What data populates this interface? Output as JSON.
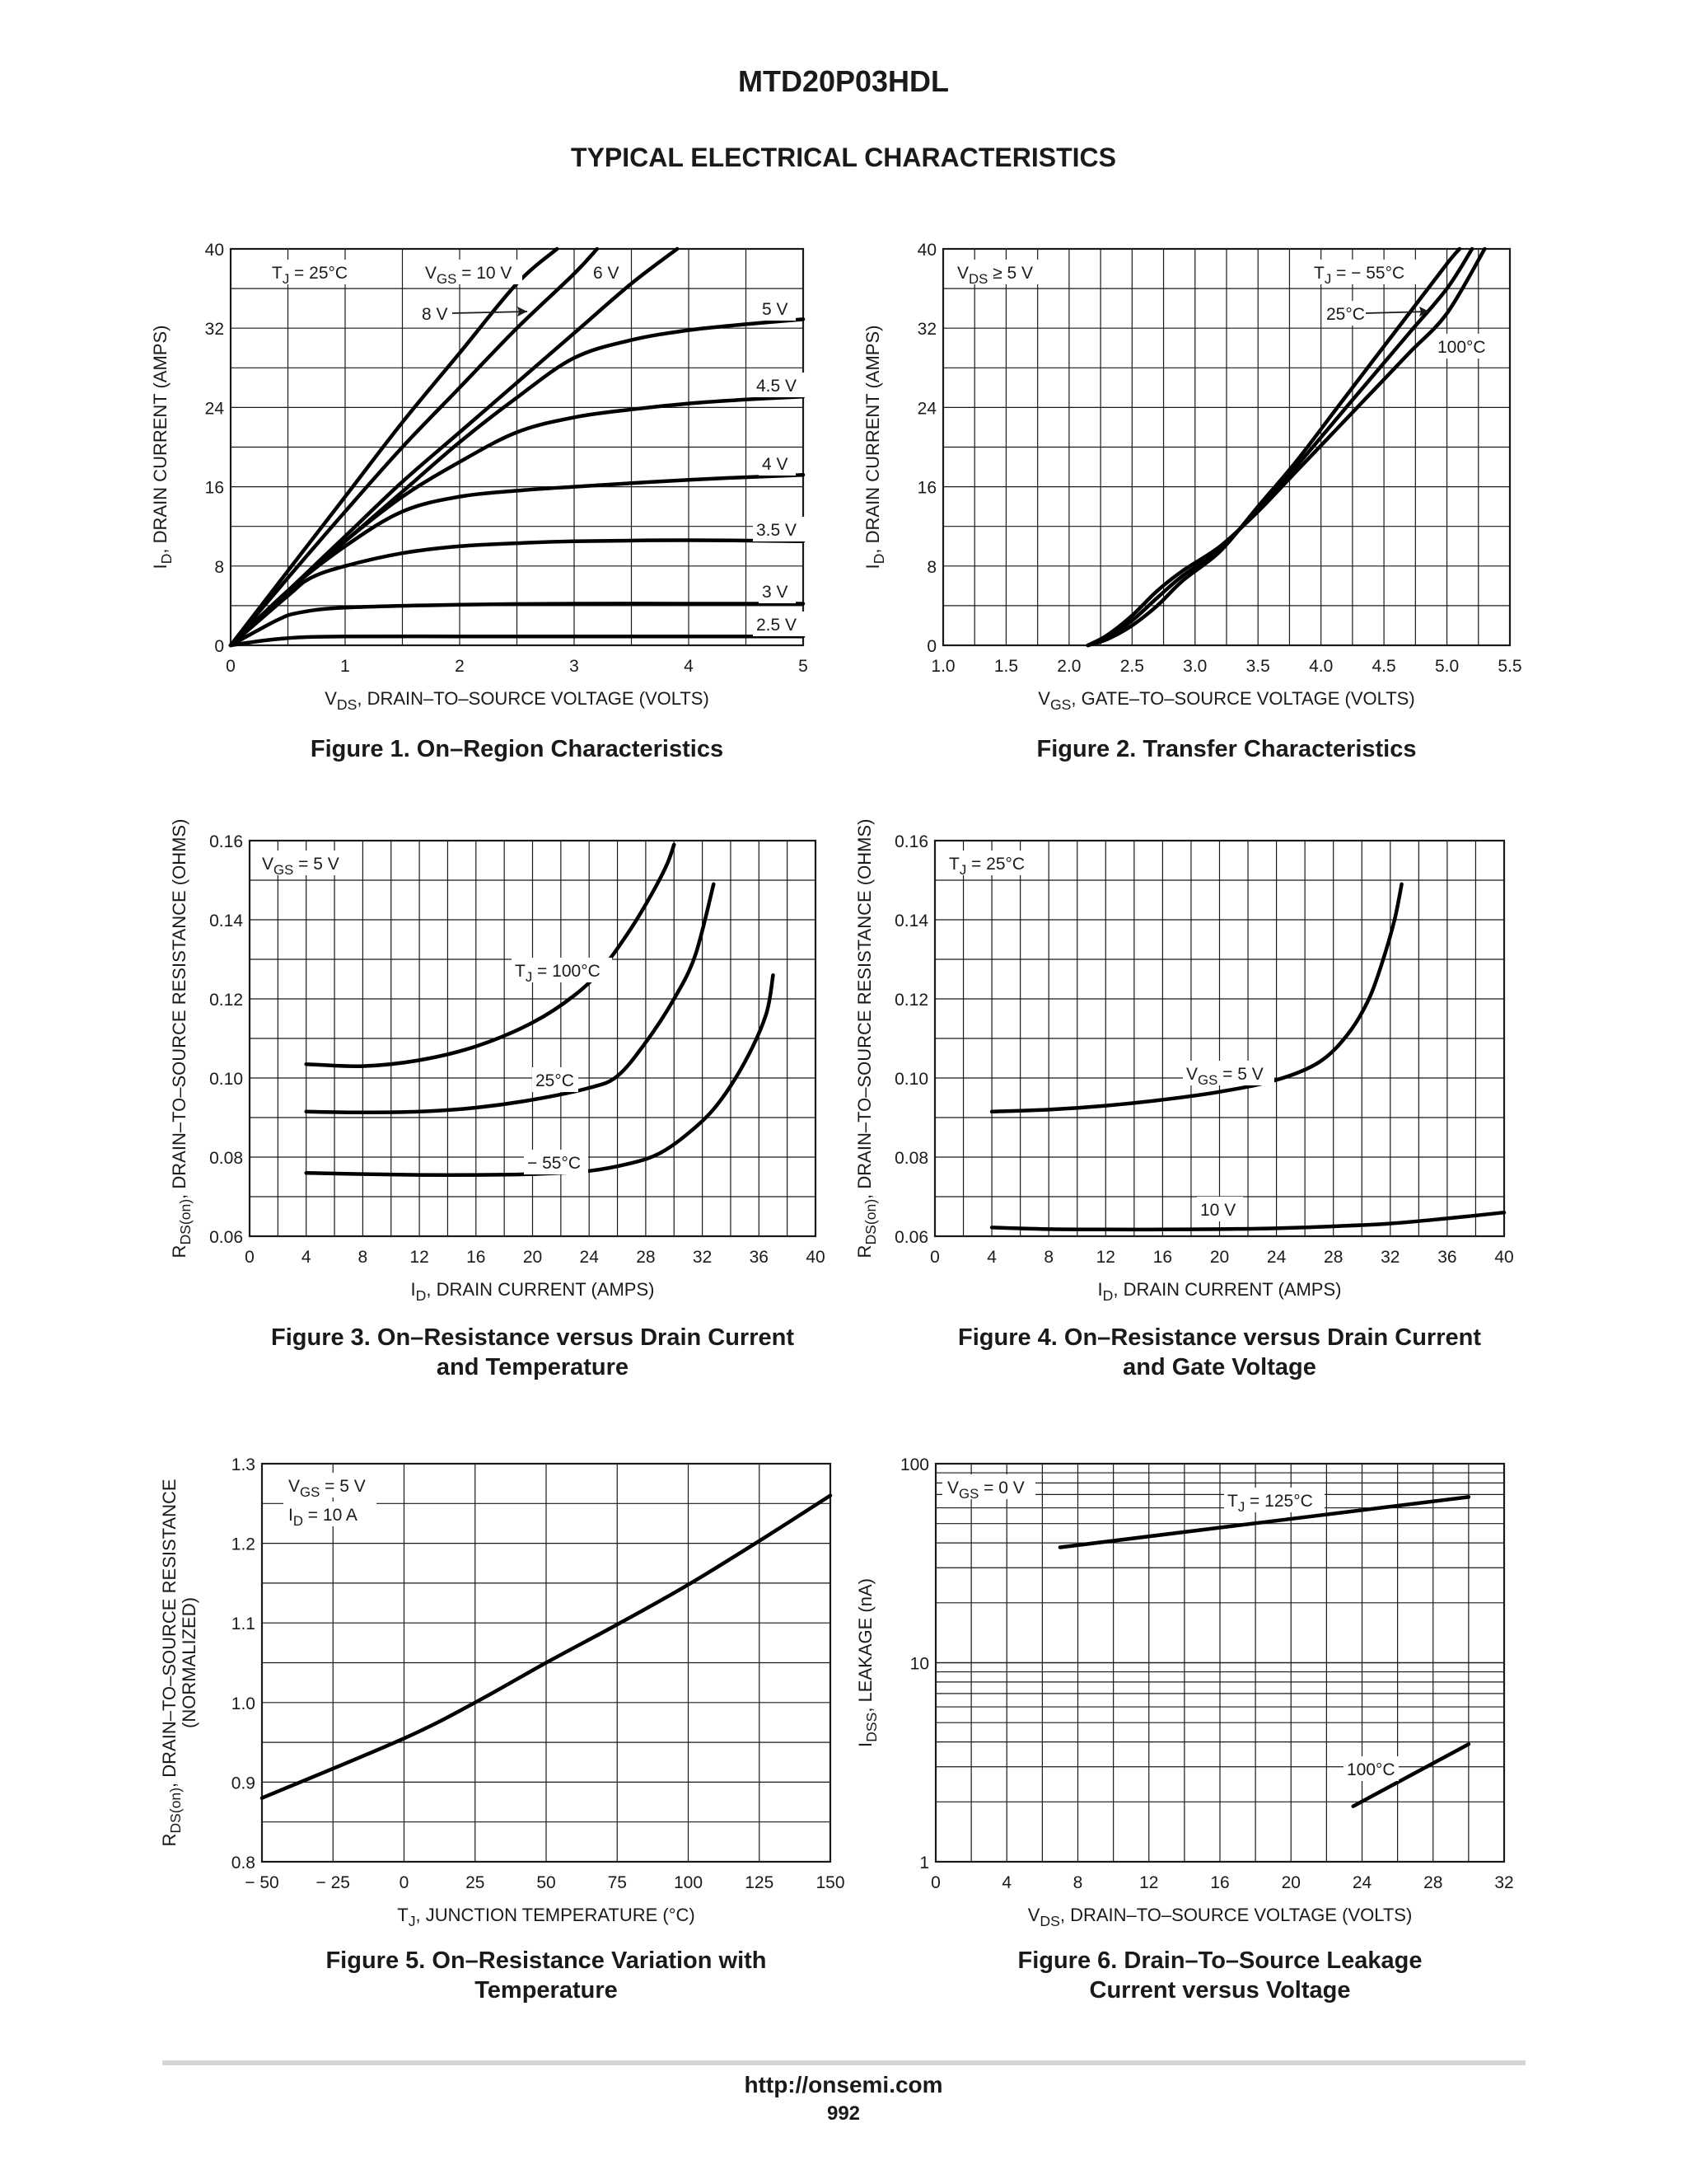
{
  "document": {
    "part_number": "MTD20P03HDL",
    "section_title": "TYPICAL ELECTRICAL CHARACTERISTICS",
    "footer_url": "http://onsemi.com",
    "page_number": "992"
  },
  "chart_data": [
    {
      "type": "line",
      "caption": [
        "Figure 1. On–Region Characteristics"
      ],
      "xlabel": "VDS, DRAIN–TO–SOURCE VOLTAGE (VOLTS)",
      "ylabel": "ID, DRAIN CURRENT (AMPS)",
      "xlim": [
        0,
        5
      ],
      "ylim": [
        0,
        40
      ],
      "xticks": [
        0,
        1,
        2,
        3,
        4,
        5
      ],
      "yticks": [
        0,
        8,
        16,
        24,
        32,
        40
      ],
      "grid": true,
      "annotations": [
        "TJ = 25°C"
      ],
      "series": [
        {
          "name": "VGS = 10 V",
          "x": [
            0,
            0.5,
            1,
            1.5,
            2,
            2.5,
            2.85
          ],
          "y": [
            0,
            7.5,
            15,
            22.5,
            29.5,
            36.5,
            40
          ]
        },
        {
          "name": "8 V",
          "x": [
            0,
            0.5,
            1,
            1.5,
            2,
            2.5,
            3,
            3.2
          ],
          "y": [
            0,
            6.8,
            13.5,
            20,
            26,
            32,
            37.5,
            40
          ]
        },
        {
          "name": "6 V",
          "x": [
            0,
            0.5,
            1,
            1.5,
            2,
            2.5,
            3,
            3.5,
            3.9
          ],
          "y": [
            0,
            5.5,
            11,
            16.5,
            21.5,
            26.5,
            31.5,
            36.5,
            40
          ]
        },
        {
          "name": "5 V",
          "x": [
            0,
            0.5,
            1,
            1.5,
            2,
            2.5,
            3,
            3.5,
            4,
            4.5,
            5
          ],
          "y": [
            0,
            5.5,
            10.5,
            15.5,
            20.5,
            25,
            29,
            30.8,
            31.8,
            32.4,
            32.9
          ]
        },
        {
          "name": "4.5 V",
          "x": [
            0,
            0.5,
            1,
            1.5,
            2,
            2.5,
            3,
            3.5,
            4,
            4.5,
            5
          ],
          "y": [
            0,
            5.5,
            10.5,
            15,
            18.5,
            21.5,
            23,
            23.8,
            24.4,
            24.8,
            25.1
          ]
        },
        {
          "name": "4 V",
          "x": [
            0,
            0.5,
            1,
            1.5,
            2,
            2.5,
            3,
            4,
            5
          ],
          "y": [
            0,
            5.5,
            10,
            13.5,
            15,
            15.6,
            16,
            16.7,
            17.2
          ]
        },
        {
          "name": "3.5 V",
          "x": [
            0,
            0.5,
            0.7,
            1,
            1.5,
            2,
            2.5,
            3,
            4,
            5
          ],
          "y": [
            0,
            5,
            6.8,
            8,
            9.3,
            10,
            10.3,
            10.5,
            10.6,
            10.5
          ]
        },
        {
          "name": "3 V",
          "x": [
            0,
            0.4,
            0.6,
            1,
            2,
            3,
            4,
            5
          ],
          "y": [
            0,
            2.5,
            3.3,
            3.8,
            4.1,
            4.2,
            4.2,
            4.2
          ]
        },
        {
          "name": "2.5 V",
          "x": [
            0,
            0.3,
            0.6,
            1,
            2,
            3,
            4,
            5
          ],
          "y": [
            0,
            0.5,
            0.8,
            0.9,
            0.9,
            0.9,
            0.9,
            0.9
          ]
        }
      ]
    },
    {
      "type": "line",
      "caption": [
        "Figure 2. Transfer Characteristics"
      ],
      "xlabel": "VGS, GATE–TO–SOURCE VOLTAGE (VOLTS)",
      "ylabel": "ID, DRAIN CURRENT (AMPS)",
      "xlim": [
        1.0,
        5.5
      ],
      "ylim": [
        0,
        40
      ],
      "xticks": [
        "1.0",
        "1.5",
        "2.0",
        "2.5",
        "3.0",
        "3.5",
        "4.0",
        "4.5",
        "5.0",
        "5.5"
      ],
      "yticks": [
        0,
        8,
        16,
        24,
        32,
        40
      ],
      "grid": true,
      "annotations": [
        "VDS ≥ 5 V"
      ],
      "series": [
        {
          "name": "TJ = − 55°C",
          "x": [
            2.15,
            2.3,
            2.5,
            2.7,
            2.9,
            3.2,
            3.5,
            3.8,
            4.1,
            4.4,
            4.7,
            5.0,
            5.1
          ],
          "y": [
            0,
            0.6,
            2,
            4,
            6.5,
            9.5,
            14,
            18.5,
            23.5,
            28.5,
            33.5,
            38.5,
            40
          ]
        },
        {
          "name": "25°C",
          "x": [
            2.15,
            2.3,
            2.5,
            2.7,
            2.9,
            3.2,
            3.5,
            3.8,
            4.1,
            4.4,
            4.7,
            5.0,
            5.2
          ],
          "y": [
            0,
            0.8,
            2.5,
            4.8,
            7,
            9.7,
            13.8,
            18,
            22.5,
            27,
            31.5,
            36,
            40
          ]
        },
        {
          "name": "100°C",
          "x": [
            2.15,
            2.3,
            2.5,
            2.7,
            2.9,
            3.2,
            3.5,
            3.8,
            4.1,
            4.4,
            4.7,
            5.0,
            5.3
          ],
          "y": [
            0,
            1,
            3,
            5.5,
            7.5,
            10,
            13.5,
            17.5,
            21.5,
            25.5,
            29.5,
            33.5,
            40
          ]
        }
      ]
    },
    {
      "type": "line",
      "caption": [
        "Figure 3. On–Resistance versus Drain Current",
        "and Temperature"
      ],
      "xlabel": "ID, DRAIN CURRENT (AMPS)",
      "ylabel": "RDS(on), DRAIN–TO–SOURCE RESISTANCE (OHMS)",
      "xlim": [
        0,
        40
      ],
      "ylim": [
        0.06,
        0.16
      ],
      "xticks": [
        0,
        4,
        8,
        12,
        16,
        20,
        24,
        28,
        32,
        36,
        40
      ],
      "yticks": [
        "0.06",
        "0.08",
        "0.10",
        "0.12",
        "0.14",
        "0.16"
      ],
      "grid": true,
      "annotations": [
        "VGS = 5 V"
      ],
      "series": [
        {
          "name": "TJ = 100°C",
          "x": [
            4,
            8,
            12,
            16,
            20,
            23,
            25,
            27,
            28.5,
            29.5,
            30
          ],
          "y": [
            0.1035,
            0.103,
            0.1045,
            0.108,
            0.114,
            0.121,
            0.128,
            0.138,
            0.147,
            0.154,
            0.159
          ]
        },
        {
          "name": "25°C",
          "x": [
            4,
            8,
            12,
            16,
            20,
            24,
            26,
            28,
            30,
            31.5,
            32.8
          ],
          "y": [
            0.0915,
            0.0913,
            0.0915,
            0.0925,
            0.0945,
            0.0975,
            0.1005,
            0.109,
            0.12,
            0.131,
            0.149
          ]
        },
        {
          "name": "− 55°C",
          "x": [
            4,
            8,
            12,
            16,
            20,
            24,
            27,
            29,
            31,
            33,
            35,
            36.5,
            37
          ],
          "y": [
            0.076,
            0.0757,
            0.0755,
            0.0755,
            0.0757,
            0.0765,
            0.0785,
            0.081,
            0.086,
            0.093,
            0.104,
            0.116,
            0.126
          ]
        }
      ]
    },
    {
      "type": "line",
      "caption": [
        "Figure 4. On–Resistance versus Drain Current",
        "and Gate Voltage"
      ],
      "xlabel": "ID, DRAIN CURRENT (AMPS)",
      "ylabel": "RDS(on), DRAIN–TO–SOURCE RESISTANCE (OHMS)",
      "xlim": [
        0,
        40
      ],
      "ylim": [
        0.06,
        0.16
      ],
      "xticks": [
        0,
        4,
        8,
        12,
        16,
        20,
        24,
        28,
        32,
        36,
        40
      ],
      "yticks": [
        "0.06",
        "0.08",
        "0.10",
        "0.12",
        "0.14",
        "0.16"
      ],
      "grid": true,
      "annotations": [
        "TJ = 25°C"
      ],
      "series": [
        {
          "name": "VGS = 5 V",
          "x": [
            4,
            8,
            12,
            16,
            20,
            24,
            27,
            29,
            30.5,
            31.5,
            32.3,
            32.8
          ],
          "y": [
            0.0915,
            0.092,
            0.093,
            0.0945,
            0.0965,
            0.0995,
            0.104,
            0.111,
            0.12,
            0.13,
            0.14,
            0.149
          ]
        },
        {
          "name": "10 V",
          "x": [
            4,
            8,
            12,
            16,
            20,
            24,
            28,
            32,
            36,
            40
          ],
          "y": [
            0.0622,
            0.0618,
            0.0617,
            0.0617,
            0.0618,
            0.062,
            0.0625,
            0.0632,
            0.0645,
            0.066
          ]
        }
      ]
    },
    {
      "type": "line",
      "caption": [
        "Figure 5. On–Resistance Variation with",
        "Temperature"
      ],
      "xlabel": "TJ, JUNCTION TEMPERATURE (°C)",
      "ylabel": [
        "RDS(on), DRAIN–TO–SOURCE RESISTANCE",
        "(NORMALIZED)"
      ],
      "xlim": [
        -50,
        150
      ],
      "ylim": [
        0.8,
        1.3
      ],
      "xticks": [
        "− 50",
        "− 25",
        "0",
        "25",
        "50",
        "75",
        "100",
        "125",
        "150"
      ],
      "yticks": [
        "0.8",
        "0.9",
        "1.0",
        "1.1",
        "1.2",
        "1.3"
      ],
      "grid": true,
      "annotations": [
        "VGS = 5 V",
        "ID = 10 A"
      ],
      "series": [
        {
          "x": [
            -50,
            0,
            25,
            50,
            75,
            100,
            125,
            150
          ],
          "y": [
            0.88,
            0.955,
            1.0,
            1.05,
            1.098,
            1.148,
            1.203,
            1.26
          ]
        }
      ]
    },
    {
      "type": "line",
      "caption": [
        "Figure 6. Drain–To–Source Leakage",
        "Current versus Voltage"
      ],
      "xlabel": "VDS, DRAIN–TO–SOURCE VOLTAGE (VOLTS)",
      "ylabel": "IDSS, LEAKAGE (nA)",
      "xlim": [
        0,
        32
      ],
      "ylim": [
        1,
        100
      ],
      "yscale": "log",
      "xticks": [
        0,
        4,
        8,
        12,
        16,
        20,
        24,
        28,
        32
      ],
      "yticks": [
        "1",
        "10",
        "100"
      ],
      "grid": true,
      "annotations": [
        "VGS = 0 V"
      ],
      "series": [
        {
          "name": "TJ = 125°C",
          "x": [
            7,
            30
          ],
          "y": [
            38,
            68
          ]
        },
        {
          "name": "100°C",
          "x": [
            23.5,
            30
          ],
          "y": [
            1.9,
            3.9
          ]
        }
      ]
    }
  ]
}
